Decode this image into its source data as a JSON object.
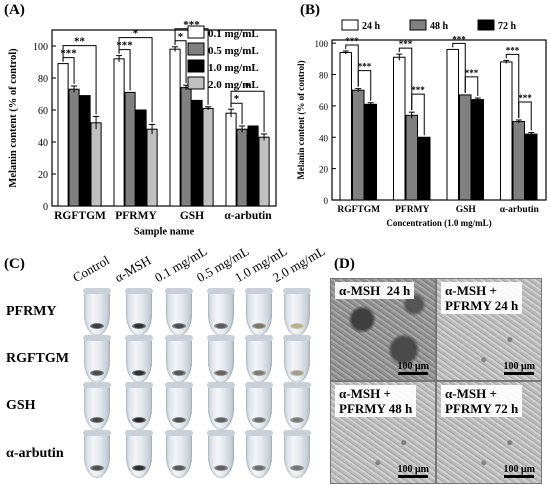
{
  "panels": {
    "a": "(A)",
    "b": "(B)",
    "c": "(C)",
    "d": "(D)"
  },
  "chart_data": [
    {
      "type": "bar",
      "panel": "(A)",
      "categories": [
        "RGFTGM",
        "PFRMY",
        "GSH",
        "α-arbutin"
      ],
      "series": [
        {
          "name": "0.1 mg/mL",
          "color": "#ffffff",
          "values": [
            89,
            92,
            98,
            58
          ],
          "errors": [
            0,
            2,
            1.5,
            2.5
          ]
        },
        {
          "name": "0.5 mg/mL",
          "color": "#808080",
          "values": [
            73,
            71,
            74,
            48
          ],
          "errors": [
            2,
            0,
            1.5,
            2
          ]
        },
        {
          "name": "1.0 mg/mL",
          "color": "#000000",
          "values": [
            69,
            60,
            66,
            50
          ],
          "errors": [
            0,
            0,
            0,
            0
          ]
        },
        {
          "name": "2.0 mg/mL",
          "color": "#c0c0c0",
          "values": [
            52,
            48,
            61,
            43
          ],
          "errors": [
            4,
            3,
            1,
            2
          ]
        }
      ],
      "significance": [
        "***",
        "**",
        "***",
        "*",
        "*",
        "***",
        "*",
        "*",
        "*",
        "*"
      ],
      "xlabel": "Sample name",
      "ylabel": "Melanin content (% of control)",
      "ylim": [
        0,
        110
      ],
      "yticks": [
        "0",
        "20",
        "40",
        "60",
        "80",
        "100"
      ],
      "legend": "top-right"
    },
    {
      "type": "bar",
      "panel": "(B)",
      "categories": [
        "RGFTGM",
        "PFRMY",
        "GSH",
        "α-arbutin"
      ],
      "series": [
        {
          "name": "24 h",
          "color": "#ffffff",
          "values": [
            94,
            91,
            96,
            88
          ],
          "errors": [
            1,
            2,
            0,
            1
          ]
        },
        {
          "name": "48 h",
          "color": "#808080",
          "values": [
            70,
            54,
            67,
            50
          ],
          "errors": [
            1,
            2,
            0,
            1
          ]
        },
        {
          "name": "72 h",
          "color": "#000000",
          "values": [
            61,
            40,
            64,
            42
          ],
          "errors": [
            1,
            0,
            1,
            1
          ]
        }
      ],
      "significance": [
        "***",
        "***",
        "***",
        "***",
        "***",
        "***",
        "***",
        "***"
      ],
      "xlabel": "Concentration (1.0 mg/mL)",
      "ylabel": "Melanin content (% of control)",
      "ylim": [
        0,
        102
      ],
      "yticks": [
        "0",
        "20",
        "40",
        "60",
        "80",
        "100"
      ],
      "legend": "top"
    }
  ],
  "tubes": {
    "columns": [
      "Control",
      "α-MSH",
      "0.1 mg/mL",
      "0.5 mg/mL",
      "1.0 mg/mL",
      "2.0 mg/mL"
    ],
    "rows": [
      {
        "name": "PFRMY",
        "pellets": [
          "#3d3d3d",
          "#2e2e2e",
          "#4b4b4b",
          "#595959",
          "#7d7564",
          "#b9ae8a"
        ]
      },
      {
        "name": "RGFTGM",
        "pellets": [
          "#4a4a4a",
          "#2f2f2f",
          "#555555",
          "#66625b",
          "#807a6e",
          "#a49c8a"
        ]
      },
      {
        "name": "GSH",
        "pellets": [
          "#474747",
          "#262626",
          "#4f4f4f",
          "#606060",
          "#6d6d6d",
          "#7a7a7a"
        ]
      },
      {
        "name": "α-arbutin",
        "pellets": [
          "#505050",
          "#2b2b2b",
          "#565656",
          "#616161",
          "#6b6b6b",
          "#757575"
        ]
      }
    ]
  },
  "micrographs": [
    {
      "label": "α-MSH  24 h",
      "scale": "100 μm",
      "dark": true
    },
    {
      "label": "α-MSH +\nPFRMY 24 h",
      "scale": "100 μm",
      "dark": false
    },
    {
      "label": "α-MSH +\nPFRMY 48 h",
      "scale": "100 μm",
      "dark": false
    },
    {
      "label": "α-MSH +\nPFRMY 72 h",
      "scale": "100 μm",
      "dark": false
    }
  ]
}
